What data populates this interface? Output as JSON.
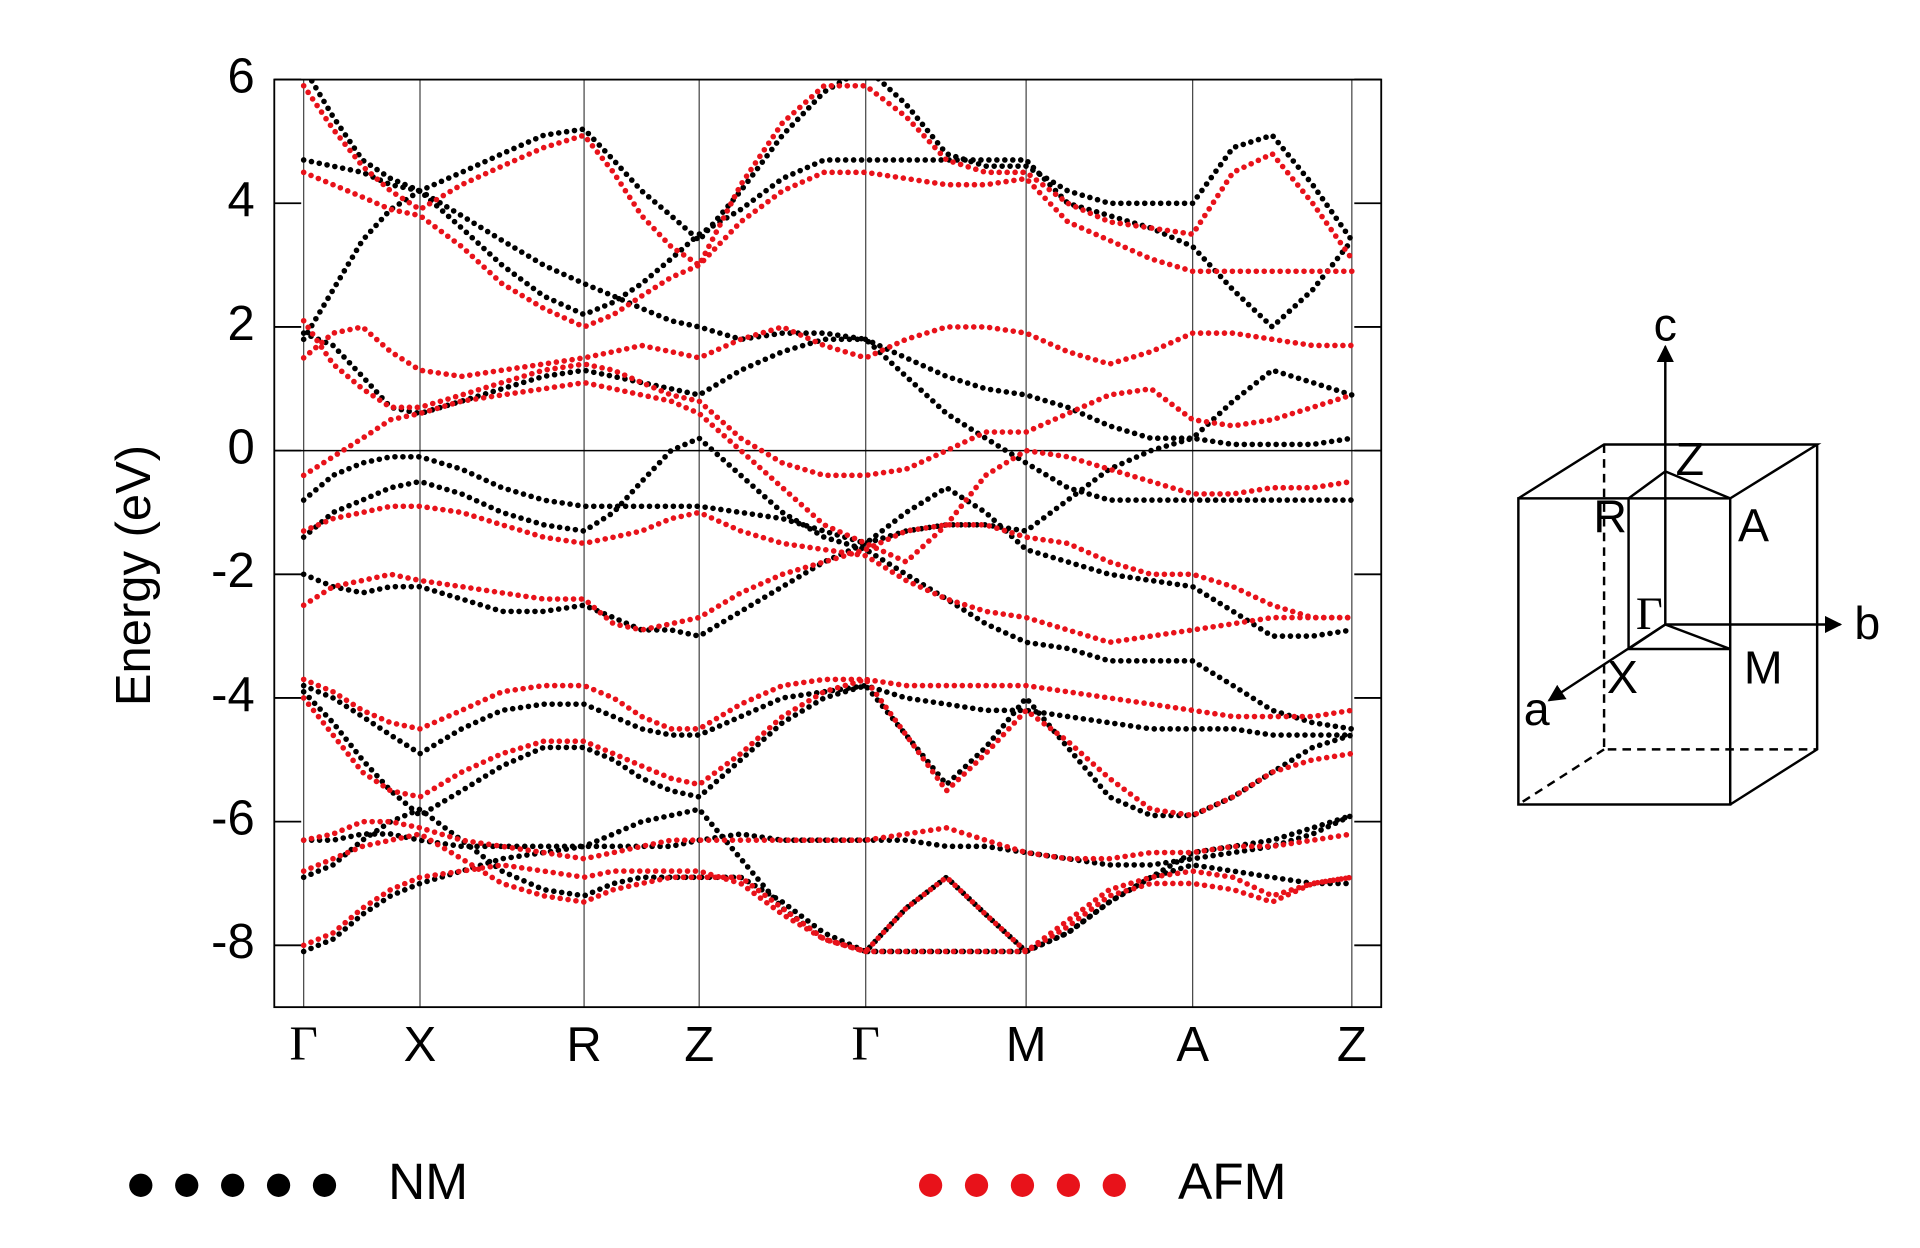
{
  "chart_data": {
    "type": "band-structure",
    "y_label": "Energy (eV)",
    "x": [
      0,
      24,
      48,
      71,
      95,
      129,
      162,
      196,
      229,
      253,
      276,
      300,
      323,
      357,
      391,
      425,
      459,
      492,
      525,
      557,
      590,
      624,
      658,
      692,
      726,
      759,
      791,
      824,
      856
    ],
    "xlim": [
      -24,
      880
    ],
    "xticks": [
      {
        "value": 0,
        "label": "Γ"
      },
      {
        "value": 95,
        "label": "X"
      },
      {
        "value": 229,
        "label": "R"
      },
      {
        "value": 323,
        "label": "Z"
      },
      {
        "value": 459,
        "label": "Γ"
      },
      {
        "value": 590,
        "label": "M"
      },
      {
        "value": 726,
        "label": "A"
      },
      {
        "value": 856,
        "label": "Z"
      }
    ],
    "ylim": [
      -9,
      6
    ],
    "yticks": [
      -8,
      -6,
      -4,
      -2,
      0,
      2,
      4,
      6
    ],
    "fermi_level": 0,
    "series": [
      {
        "name": "NM",
        "color": "#000000",
        "bands": [
          [
            6.2,
            5.4,
            4.7,
            4.4,
            4.2,
            4.5,
            4.8,
            5.1,
            5.2,
            4.7,
            4.2,
            3.8,
            3.4,
            4.2,
            5.1,
            5.8,
            6.2,
            5.6,
            4.8,
            4.6,
            4.6,
            4.2,
            4.0,
            4.0,
            4.0,
            4.9,
            5.1,
            4.3,
            3.4
          ],
          [
            4.7,
            4.6,
            4.5,
            4.3,
            4.2,
            3.6,
            3.0,
            2.5,
            2.2,
            2.4,
            2.7,
            3.1,
            3.5,
            3.9,
            4.4,
            4.7,
            4.7,
            4.7,
            4.7,
            4.7,
            4.7,
            4.0,
            3.8,
            3.6,
            3.3,
            2.6,
            2.0,
            2.6,
            3.4
          ],
          [
            1.9,
            1.7,
            1.2,
            0.7,
            0.6,
            0.8,
            1.0,
            1.2,
            1.3,
            1.2,
            1.1,
            1.0,
            0.9,
            1.3,
            1.6,
            1.8,
            1.8,
            1.5,
            1.2,
            1.0,
            0.9,
            0.7,
            0.4,
            0.2,
            0.2,
            0.8,
            1.3,
            1.1,
            0.9
          ],
          [
            1.8,
            2.6,
            3.4,
            3.9,
            4.2,
            3.8,
            3.4,
            3.0,
            2.7,
            2.5,
            2.3,
            2.1,
            2.0,
            1.8,
            1.9,
            1.9,
            1.8,
            1.2,
            0.6,
            0.2,
            -0.2,
            -0.6,
            -0.8,
            -0.8,
            -0.8,
            -0.8,
            -0.8,
            -0.8,
            -0.8
          ],
          [
            -0.8,
            -0.4,
            -0.2,
            -0.1,
            -0.1,
            -0.3,
            -0.6,
            -0.8,
            -0.9,
            -0.9,
            -0.9,
            -0.9,
            -0.9,
            -1.0,
            -1.1,
            -1.3,
            -1.5,
            -1.3,
            -1.2,
            -1.2,
            -1.3,
            -0.8,
            -0.3,
            0.0,
            0.2,
            0.1,
            0.1,
            0.1,
            0.2
          ],
          [
            -1.4,
            -1.0,
            -0.8,
            -0.6,
            -0.5,
            -0.7,
            -1.0,
            -1.2,
            -1.3,
            -1.0,
            -0.5,
            0.0,
            0.2,
            -0.4,
            -1.0,
            -1.4,
            -1.6,
            -2.0,
            -2.4,
            -2.8,
            -3.1,
            -3.2,
            -3.4,
            -3.4,
            -3.4,
            -3.8,
            -4.2,
            -4.4,
            -4.5
          ],
          [
            -2.0,
            -2.2,
            -2.3,
            -2.2,
            -2.2,
            -2.4,
            -2.6,
            -2.6,
            -2.5,
            -2.7,
            -2.9,
            -2.9,
            -3.0,
            -2.6,
            -2.2,
            -1.8,
            -1.5,
            -1.0,
            -0.6,
            -1.0,
            -1.6,
            -1.8,
            -2.0,
            -2.1,
            -2.2,
            -2.6,
            -3.0,
            -3.0,
            -2.9
          ],
          [
            -3.8,
            -4.0,
            -4.3,
            -4.6,
            -4.9,
            -4.5,
            -4.2,
            -4.1,
            -4.1,
            -4.3,
            -4.5,
            -4.6,
            -4.6,
            -4.3,
            -4.0,
            -3.9,
            -3.8,
            -4.0,
            -4.1,
            -4.2,
            -4.2,
            -4.3,
            -4.4,
            -4.5,
            -4.5,
            -4.5,
            -4.6,
            -4.6,
            -4.6
          ],
          [
            -3.9,
            -4.4,
            -5.0,
            -5.5,
            -5.9,
            -5.5,
            -5.1,
            -4.8,
            -4.8,
            -5.0,
            -5.3,
            -5.5,
            -5.6,
            -5.0,
            -4.4,
            -4.0,
            -3.8,
            -4.6,
            -5.4,
            -4.8,
            -4.0,
            -4.8,
            -5.6,
            -5.9,
            -5.9,
            -5.6,
            -5.2,
            -4.8,
            -4.6
          ],
          [
            -6.3,
            -6.3,
            -6.2,
            -6.2,
            -6.3,
            -6.4,
            -6.4,
            -6.4,
            -6.4,
            -6.4,
            -6.4,
            -6.4,
            -6.3,
            -6.2,
            -6.3,
            -6.3,
            -6.3,
            -6.3,
            -6.4,
            -6.4,
            -6.5,
            -6.6,
            -6.7,
            -6.7,
            -6.6,
            -6.5,
            -6.4,
            -6.2,
            -5.9
          ],
          [
            -6.9,
            -6.7,
            -6.3,
            -6.0,
            -5.8,
            -6.3,
            -6.8,
            -7.1,
            -7.2,
            -7.0,
            -6.9,
            -6.9,
            -6.9,
            -6.9,
            -7.3,
            -7.8,
            -8.1,
            -7.4,
            -6.9,
            -7.5,
            -8.1,
            -7.8,
            -7.3,
            -6.9,
            -6.7,
            -6.8,
            -6.9,
            -7.0,
            -7.0
          ],
          [
            -8.1,
            -7.9,
            -7.5,
            -7.2,
            -7.0,
            -6.8,
            -6.6,
            -6.5,
            -6.4,
            -6.2,
            -6.0,
            -5.9,
            -5.8,
            -6.6,
            -7.4,
            -7.9,
            -8.1,
            -8.1,
            -8.1,
            -8.1,
            -8.1,
            -7.8,
            -7.3,
            -6.9,
            -6.5,
            -6.4,
            -6.3,
            -6.1,
            -5.9
          ]
        ]
      },
      {
        "name": "AFM",
        "color": "#e8121a",
        "bands": [
          [
            5.9,
            5.2,
            4.6,
            4.2,
            3.9,
            4.3,
            4.6,
            4.9,
            5.1,
            4.5,
            3.8,
            3.3,
            3.0,
            4.3,
            5.3,
            5.9,
            5.9,
            5.4,
            4.7,
            4.5,
            4.5,
            4.0,
            3.7,
            3.6,
            3.5,
            4.5,
            4.8,
            4.0,
            3.1
          ],
          [
            4.5,
            4.3,
            4.1,
            3.9,
            3.8,
            3.3,
            2.7,
            2.3,
            2.0,
            2.2,
            2.5,
            2.8,
            3.0,
            3.7,
            4.2,
            4.5,
            4.5,
            4.4,
            4.3,
            4.3,
            4.4,
            3.7,
            3.4,
            3.1,
            2.9,
            2.9,
            2.9,
            2.9,
            2.9
          ],
          [
            1.5,
            1.9,
            2.0,
            1.6,
            1.3,
            1.2,
            1.3,
            1.4,
            1.5,
            1.6,
            1.7,
            1.6,
            1.5,
            1.8,
            2.0,
            1.7,
            1.5,
            1.8,
            2.0,
            2.0,
            1.9,
            1.6,
            1.4,
            1.6,
            1.9,
            1.9,
            1.8,
            1.7,
            1.7
          ],
          [
            2.1,
            1.4,
            1.0,
            0.7,
            0.7,
            0.9,
            1.1,
            1.3,
            1.4,
            1.3,
            1.1,
            0.9,
            0.8,
            0.2,
            -0.2,
            -0.4,
            -0.4,
            -0.3,
            0.0,
            0.3,
            0.3,
            0.6,
            0.9,
            1.0,
            0.5,
            0.4,
            0.5,
            0.7,
            0.9
          ],
          [
            -0.4,
            -0.1,
            0.2,
            0.5,
            0.6,
            0.8,
            0.9,
            1.0,
            1.1,
            1.0,
            0.9,
            0.8,
            0.6,
            0.0,
            -0.6,
            -1.2,
            -1.5,
            -1.8,
            -1.2,
            -0.4,
            0.0,
            -0.1,
            -0.3,
            -0.5,
            -0.7,
            -0.7,
            -0.6,
            -0.6,
            -0.5
          ],
          [
            -1.3,
            -1.1,
            -1.0,
            -0.9,
            -0.9,
            -1.0,
            -1.2,
            -1.4,
            -1.5,
            -1.4,
            -1.3,
            -1.1,
            -1.0,
            -1.3,
            -1.5,
            -1.6,
            -1.7,
            -2.1,
            -2.4,
            -2.6,
            -2.7,
            -2.9,
            -3.1,
            -3.0,
            -2.9,
            -2.8,
            -2.7,
            -2.7,
            -2.7
          ],
          [
            -2.5,
            -2.2,
            -2.1,
            -2.0,
            -2.1,
            -2.2,
            -2.3,
            -2.4,
            -2.4,
            -2.8,
            -2.9,
            -2.8,
            -2.7,
            -2.3,
            -2.0,
            -1.8,
            -1.6,
            -1.3,
            -1.2,
            -1.2,
            -1.4,
            -1.5,
            -1.8,
            -2.0,
            -2.0,
            -2.2,
            -2.5,
            -2.7,
            -2.7
          ],
          [
            -3.7,
            -3.9,
            -4.2,
            -4.4,
            -4.5,
            -4.2,
            -3.9,
            -3.8,
            -3.8,
            -4.0,
            -4.3,
            -4.5,
            -4.5,
            -4.1,
            -3.8,
            -3.7,
            -3.7,
            -3.8,
            -3.8,
            -3.8,
            -3.8,
            -3.9,
            -4.0,
            -4.1,
            -4.2,
            -4.3,
            -4.3,
            -4.3,
            -4.2
          ],
          [
            -4.0,
            -4.6,
            -5.2,
            -5.5,
            -5.6,
            -5.2,
            -4.9,
            -4.7,
            -4.7,
            -4.9,
            -5.1,
            -5.3,
            -5.4,
            -4.9,
            -4.3,
            -3.9,
            -3.7,
            -4.6,
            -5.5,
            -4.9,
            -4.2,
            -4.7,
            -5.3,
            -5.8,
            -5.9,
            -5.6,
            -5.2,
            -5.0,
            -4.9
          ],
          [
            -6.3,
            -6.2,
            -6.0,
            -6.0,
            -6.1,
            -6.3,
            -6.4,
            -6.5,
            -6.6,
            -6.5,
            -6.4,
            -6.3,
            -6.3,
            -6.3,
            -6.3,
            -6.3,
            -6.3,
            -6.2,
            -6.1,
            -6.3,
            -6.5,
            -6.6,
            -6.6,
            -6.5,
            -6.5,
            -6.4,
            -6.4,
            -6.3,
            -6.2
          ],
          [
            -6.8,
            -6.6,
            -6.4,
            -6.3,
            -6.2,
            -6.6,
            -7.0,
            -7.2,
            -7.3,
            -7.1,
            -7.0,
            -6.9,
            -6.9,
            -6.9,
            -7.4,
            -7.9,
            -8.1,
            -7.4,
            -6.9,
            -7.5,
            -8.1,
            -7.7,
            -7.2,
            -7.0,
            -7.0,
            -7.1,
            -7.3,
            -7.0,
            -6.9
          ],
          [
            -8.0,
            -7.8,
            -7.4,
            -7.1,
            -6.9,
            -6.8,
            -6.7,
            -6.8,
            -6.9,
            -6.8,
            -6.8,
            -6.8,
            -6.8,
            -7.0,
            -7.5,
            -7.9,
            -8.1,
            -8.1,
            -8.1,
            -8.1,
            -8.1,
            -7.6,
            -7.1,
            -6.9,
            -6.8,
            -6.9,
            -7.2,
            -7.0,
            -6.9
          ]
        ]
      }
    ]
  },
  "brillouin_zone": {
    "labels": [
      "c",
      "Z",
      "R",
      "A",
      "Γ",
      "b",
      "M",
      "X",
      "a"
    ]
  }
}
